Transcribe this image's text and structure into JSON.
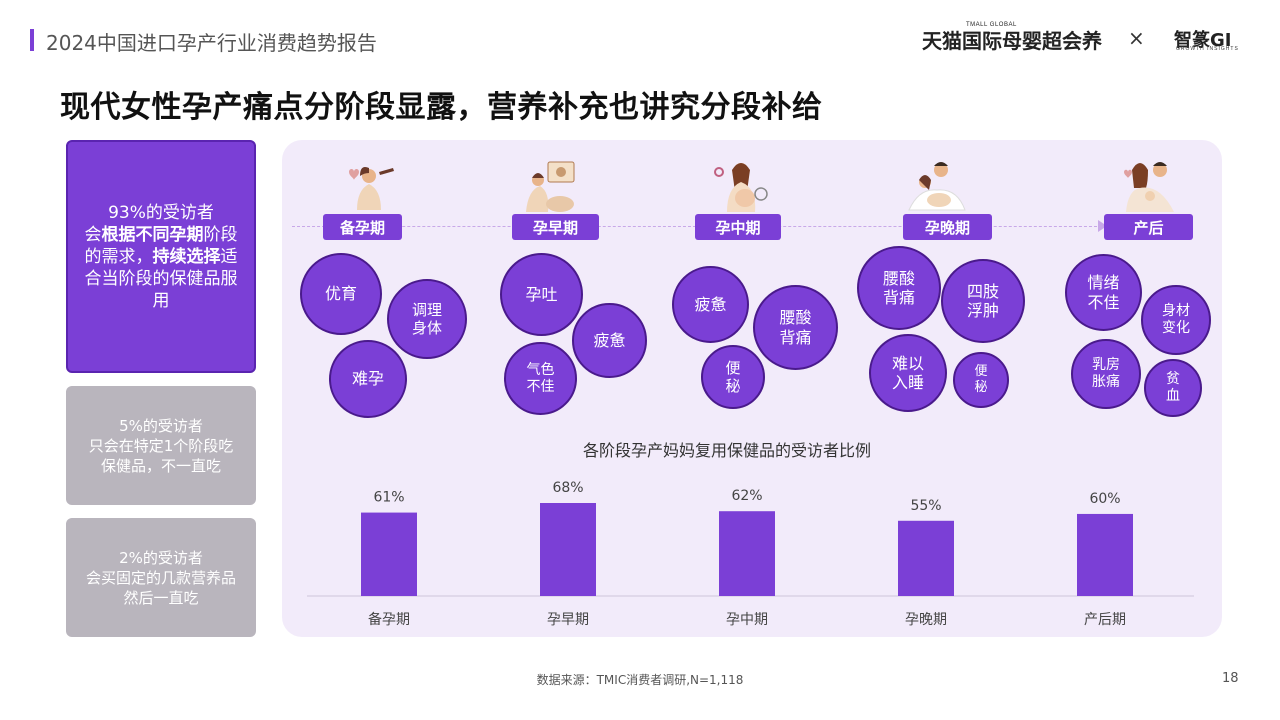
{
  "header": {
    "report_title": "2024中国进口孕产行业消费趋势报告",
    "brand_tmall_small": "TMALL GLOBAL",
    "brand_tmall": "天猫国际母婴超会养",
    "brand_separator": "×",
    "brand_gi": "智篆GI",
    "brand_gi_sub": "GROWTH INSIGHTS"
  },
  "main_title": "现代女性孕产痛点分阶段显露，营养补充也讲究分段补给",
  "stats": [
    {
      "parts": [
        "93%的受访者",
        "会",
        "根据不同孕期",
        "阶段的需求，",
        "持续选择",
        "适合当阶段的保健品服用"
      ]
    },
    {
      "lines": [
        "5%的受访者",
        "只会在特定1个阶段吃",
        "保健品，不一直吃"
      ]
    },
    {
      "lines": [
        "2%的受访者",
        "会买固定的几款营养品",
        "然后一直吃"
      ]
    }
  ],
  "stages": [
    {
      "label": "备孕期",
      "bubbles": [
        "优育",
        "调理身体",
        "难孕"
      ]
    },
    {
      "label": "孕早期",
      "bubbles": [
        "孕吐",
        "疲惫",
        "气色不佳"
      ]
    },
    {
      "label": "孕中期",
      "bubbles": [
        "疲惫",
        "腰酸背痛",
        "便秘"
      ]
    },
    {
      "label": "孕晚期",
      "bubbles": [
        "腰酸背痛",
        "四肢浮肿",
        "难以入睡",
        "便秘"
      ]
    },
    {
      "label": "产后",
      "bubbles": [
        "情绪不佳",
        "身材变化",
        "乳房胀痛",
        "贫血"
      ]
    }
  ],
  "chart_title": "各阶段孕产妈妈复用保健品的受访者比例",
  "chart_data": {
    "type": "bar",
    "title": "各阶段孕产妈妈复用保健品的受访者比例",
    "categories": [
      "备孕期",
      "孕早期",
      "孕中期",
      "孕晚期",
      "产后期"
    ],
    "values": [
      61,
      68,
      62,
      55,
      60
    ],
    "value_labels": [
      "61%",
      "68%",
      "62%",
      "55%",
      "60%"
    ],
    "unit": "%",
    "color": "#7b3fd6"
  },
  "colors": {
    "accent": "#7b3fd6",
    "panel": "#f2ebfa",
    "muted_box": "#b9b5bd"
  },
  "footer": {
    "source": "数据来源：TMIC消费者调研,N=1,118",
    "page": "18"
  }
}
